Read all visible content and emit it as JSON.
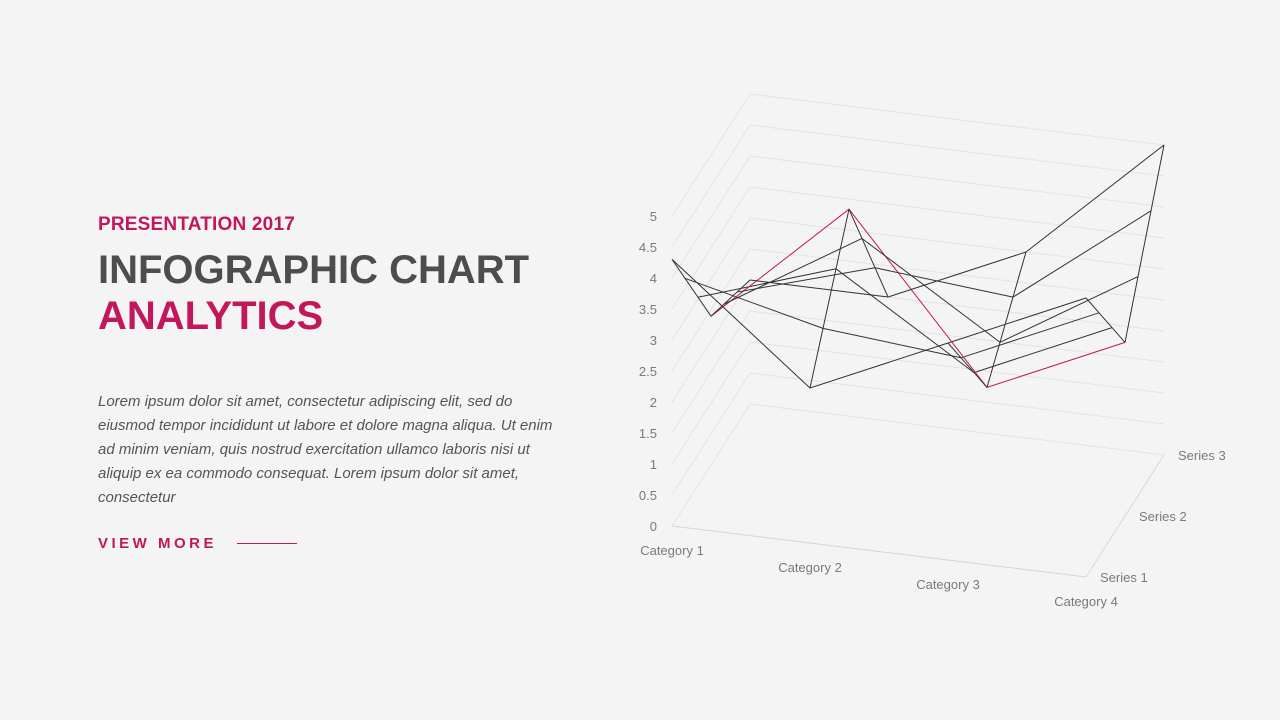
{
  "header": {
    "kicker": "PRESENTATION 2017",
    "title_line1": "INFOGRAPHIC CHART",
    "title_line2": "ANALYTICS"
  },
  "body": {
    "paragraph": "Lorem ipsum dolor sit amet, consectetur adipiscing elit, sed do eiusmod tempor incididunt ut labore et dolore magna aliqua. Ut enim ad minim veniam, quis nostrud exercitation ullamco laboris nisi ut aliquip ex ea commodo consequat. Lorem ipsum dolor sit amet, consectetur"
  },
  "cta": {
    "label": "VIEW MORE"
  },
  "colors": {
    "accent": "#c2185b",
    "title": "#4d4d4d",
    "text": "#555555",
    "grid": "#e3e3e3",
    "wire": "#333333"
  },
  "chart_data": {
    "type": "surface-wireframe-3d",
    "categories": [
      "Category 1",
      "Category 2",
      "Category 3",
      "Category 4"
    ],
    "series": [
      {
        "name": "Series 1",
        "values": [
          4.3,
          2.5,
          3.5,
          4.5
        ]
      },
      {
        "name": "Series 2",
        "values": [
          2.4,
          4.4,
          1.8,
          2.8
        ]
      },
      {
        "name": "Series 3",
        "values": [
          2.0,
          2.0,
          3.0,
          5.0
        ]
      }
    ],
    "z_ticks": [
      "0",
      "0.5",
      "1",
      "1.5",
      "2",
      "2.5",
      "3",
      "3.5",
      "4",
      "4.5",
      "5"
    ],
    "zlim": [
      0,
      5
    ],
    "grid": true,
    "legend": "none"
  }
}
